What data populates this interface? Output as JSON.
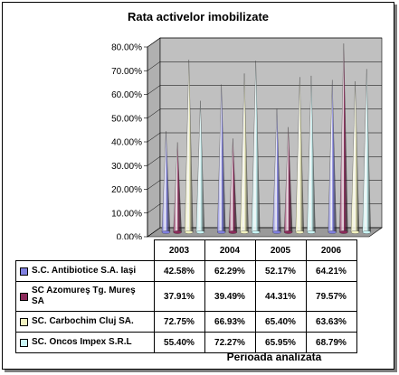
{
  "chart_data": {
    "type": "bar",
    "title": "Rata activelor imobilizate",
    "xlabel": "Perioada analizata",
    "ylabel": "",
    "ylim": [
      0,
      80
    ],
    "yticks": [
      "0.00%",
      "10.00%",
      "20.00%",
      "30.00%",
      "40.00%",
      "50.00%",
      "60.00%",
      "70.00%",
      "80.00%"
    ],
    "categories": [
      "2003",
      "2004",
      "2005",
      "2006"
    ],
    "series": [
      {
        "name": "S.C. Antibiotice S.A. Iaşi",
        "values": [
          42.58,
          62.29,
          52.17,
          64.21
        ],
        "labels": [
          "42.58%",
          "62.29%",
          "52.17%",
          "64.21%"
        ],
        "color": "#8080e0"
      },
      {
        "name": "SC Azomureş Tg. Mureş SA",
        "values": [
          37.91,
          39.49,
          44.31,
          79.57
        ],
        "labels": [
          "37.91%",
          "39.49%",
          "44.31%",
          "79.57%"
        ],
        "color": "#8b2a5a"
      },
      {
        "name": "SC. Carbochim Cluj SA.",
        "values": [
          72.75,
          66.93,
          65.4,
          63.63
        ],
        "labels": [
          "72.75%",
          "66.93%",
          "65.40%",
          "63.63%"
        ],
        "color": "#f2f2c0"
      },
      {
        "name": "SC. Oncos Impex S.R.L",
        "values": [
          55.4,
          72.27,
          65.95,
          68.79
        ],
        "labels": [
          "55.40%",
          "72.27%",
          "65.95%",
          "68.79%"
        ],
        "color": "#c8f4f4"
      }
    ],
    "grid": true,
    "legend": "table-left"
  }
}
